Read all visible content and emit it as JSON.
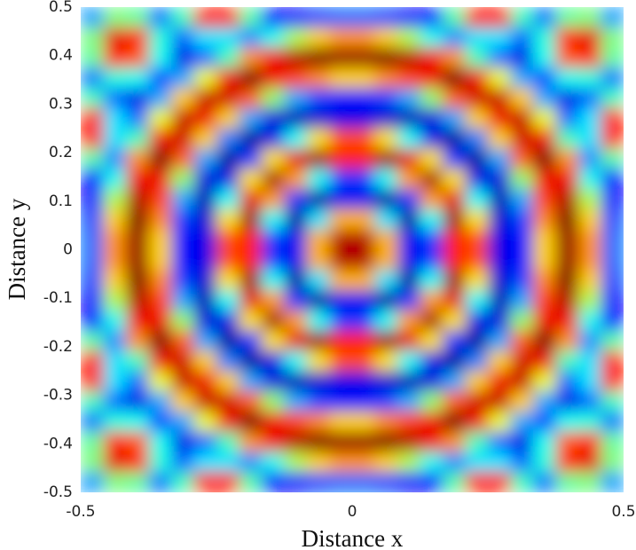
{
  "chart_data": {
    "type": "heatmap",
    "xlabel": "Distance x",
    "ylabel": "Distance y",
    "xlim": [
      -0.5,
      0.5
    ],
    "ylim": [
      -0.5,
      0.5
    ],
    "xticks": [
      -0.5,
      0,
      0.5
    ],
    "yticks": [
      -0.5,
      -0.4,
      -0.3,
      -0.2,
      -0.1,
      0,
      0.1,
      0.2,
      0.3,
      0.4,
      0.5
    ],
    "zlim": [
      0,
      1
    ],
    "colormap": "jet",
    "z": [
      [
        0.28,
        0.5,
        0.47,
        0.24,
        0.44,
        0.85,
        0.85,
        0.46,
        0.13,
        0.13,
        0.2,
        0.23,
        0.23,
        0.2,
        0.13,
        0.13,
        0.46,
        0.85,
        0.85,
        0.44,
        0.24,
        0.47,
        0.5,
        0.28
      ],
      [
        0.5,
        0.9,
        0.84,
        0.41,
        0.23,
        0.35,
        0.35,
        0.26,
        0.39,
        0.55,
        0.67,
        0.73,
        0.73,
        0.67,
        0.55,
        0.39,
        0.26,
        0.35,
        0.35,
        0.23,
        0.41,
        0.84,
        0.9,
        0.5
      ],
      [
        0.47,
        0.84,
        0.79,
        0.39,
        0.1,
        0.23,
        0.44,
        0.73,
        0.89,
        0.95,
        1,
        0.98,
        0.98,
        1,
        0.95,
        0.89,
        0.73,
        0.44,
        0.23,
        0.1,
        0.39,
        0.79,
        0.84,
        0.47
      ],
      [
        0.24,
        0.41,
        0.39,
        0.19,
        0.29,
        0.61,
        0.89,
        1,
        0.89,
        0.81,
        0.74,
        0.67,
        0.67,
        0.74,
        0.81,
        0.89,
        1,
        0.89,
        0.61,
        0.29,
        0.19,
        0.39,
        0.41,
        0.24
      ],
      [
        0.44,
        0.23,
        0.1,
        0.29,
        0.67,
        0.93,
        0.92,
        0.78,
        0.52,
        0.29,
        0.19,
        0.14,
        0.14,
        0.19,
        0.29,
        0.52,
        0.78,
        0.92,
        0.93,
        0.67,
        0.29,
        0.1,
        0.23,
        0.44
      ],
      [
        0.85,
        0.35,
        0.23,
        0.61,
        0.93,
        0.89,
        0.67,
        0.29,
        0.09,
        0.05,
        0.08,
        0.1,
        0.1,
        0.08,
        0.05,
        0.09,
        0.29,
        0.67,
        0.89,
        0.93,
        0.61,
        0.23,
        0.35,
        0.85
      ],
      [
        0.85,
        0.35,
        0.44,
        0.89,
        0.92,
        0.67,
        0.25,
        0.03,
        0.1,
        0.38,
        0.65,
        0.8,
        0.8,
        0.65,
        0.38,
        0.1,
        0.03,
        0.25,
        0.67,
        0.92,
        0.89,
        0.44,
        0.35,
        0.85
      ],
      [
        0.46,
        0.26,
        0.73,
        1,
        0.78,
        0.29,
        0.03,
        0.17,
        0.65,
        0.9,
        0.97,
        0.85,
        0.85,
        0.97,
        0.9,
        0.65,
        0.17,
        0.03,
        0.29,
        0.78,
        1,
        0.73,
        0.26,
        0.46
      ],
      [
        0.13,
        0.39,
        0.89,
        0.89,
        0.52,
        0.09,
        0.1,
        0.65,
        0.96,
        0.72,
        0.38,
        0.18,
        0.18,
        0.38,
        0.72,
        0.96,
        0.65,
        0.1,
        0.09,
        0.52,
        0.89,
        0.89,
        0.39,
        0.13
      ],
      [
        0.13,
        0.55,
        0.95,
        0.81,
        0.29,
        0.05,
        0.38,
        0.9,
        0.72,
        0.18,
        0.03,
        0.11,
        0.11,
        0.03,
        0.18,
        0.72,
        0.9,
        0.38,
        0.05,
        0.29,
        0.81,
        0.95,
        0.55,
        0.13
      ],
      [
        0.2,
        0.67,
        1,
        0.74,
        0.19,
        0.08,
        0.65,
        0.97,
        0.38,
        0.03,
        0.35,
        0.7,
        0.7,
        0.35,
        0.03,
        0.38,
        0.97,
        0.65,
        0.08,
        0.19,
        0.74,
        1,
        0.67,
        0.2
      ],
      [
        0.23,
        0.73,
        0.98,
        0.67,
        0.14,
        0.1,
        0.8,
        0.85,
        0.18,
        0.11,
        0.7,
        0.95,
        0.95,
        0.7,
        0.11,
        0.18,
        0.85,
        0.8,
        0.1,
        0.14,
        0.67,
        0.98,
        0.73,
        0.23
      ],
      [
        0.23,
        0.73,
        0.98,
        0.67,
        0.14,
        0.1,
        0.8,
        0.85,
        0.18,
        0.11,
        0.7,
        0.95,
        0.95,
        0.7,
        0.11,
        0.18,
        0.85,
        0.8,
        0.1,
        0.14,
        0.67,
        0.98,
        0.73,
        0.23
      ],
      [
        0.2,
        0.67,
        1,
        0.74,
        0.19,
        0.08,
        0.65,
        0.97,
        0.38,
        0.03,
        0.35,
        0.7,
        0.7,
        0.35,
        0.03,
        0.38,
        0.97,
        0.65,
        0.08,
        0.19,
        0.74,
        1,
        0.67,
        0.2
      ],
      [
        0.13,
        0.55,
        0.95,
        0.81,
        0.29,
        0.05,
        0.38,
        0.9,
        0.72,
        0.18,
        0.03,
        0.11,
        0.11,
        0.03,
        0.18,
        0.72,
        0.9,
        0.38,
        0.05,
        0.29,
        0.81,
        0.95,
        0.55,
        0.13
      ],
      [
        0.13,
        0.39,
        0.89,
        0.89,
        0.52,
        0.09,
        0.1,
        0.65,
        0.96,
        0.72,
        0.38,
        0.18,
        0.18,
        0.38,
        0.72,
        0.96,
        0.65,
        0.1,
        0.09,
        0.52,
        0.89,
        0.89,
        0.39,
        0.13
      ],
      [
        0.46,
        0.26,
        0.73,
        1,
        0.78,
        0.29,
        0.03,
        0.17,
        0.65,
        0.9,
        0.97,
        0.85,
        0.85,
        0.97,
        0.9,
        0.65,
        0.17,
        0.03,
        0.29,
        0.78,
        1,
        0.73,
        0.26,
        0.46
      ],
      [
        0.85,
        0.35,
        0.44,
        0.89,
        0.92,
        0.67,
        0.25,
        0.03,
        0.1,
        0.38,
        0.65,
        0.8,
        0.8,
        0.65,
        0.38,
        0.1,
        0.03,
        0.25,
        0.67,
        0.92,
        0.89,
        0.44,
        0.35,
        0.85
      ],
      [
        0.85,
        0.35,
        0.23,
        0.61,
        0.93,
        0.89,
        0.67,
        0.29,
        0.09,
        0.05,
        0.08,
        0.1,
        0.1,
        0.08,
        0.05,
        0.09,
        0.29,
        0.67,
        0.89,
        0.93,
        0.61,
        0.23,
        0.35,
        0.85
      ],
      [
        0.44,
        0.23,
        0.1,
        0.29,
        0.67,
        0.93,
        0.92,
        0.78,
        0.52,
        0.29,
        0.19,
        0.14,
        0.14,
        0.19,
        0.29,
        0.52,
        0.78,
        0.92,
        0.93,
        0.67,
        0.29,
        0.1,
        0.23,
        0.44
      ],
      [
        0.24,
        0.41,
        0.39,
        0.19,
        0.29,
        0.61,
        0.89,
        1,
        0.89,
        0.81,
        0.74,
        0.67,
        0.67,
        0.74,
        0.81,
        0.89,
        1,
        0.89,
        0.61,
        0.29,
        0.19,
        0.39,
        0.41,
        0.24
      ],
      [
        0.47,
        0.84,
        0.79,
        0.39,
        0.1,
        0.23,
        0.44,
        0.73,
        0.89,
        0.95,
        1,
        0.98,
        0.98,
        1,
        0.95,
        0.89,
        0.73,
        0.44,
        0.23,
        0.1,
        0.39,
        0.79,
        0.84,
        0.47
      ],
      [
        0.5,
        0.9,
        0.84,
        0.41,
        0.23,
        0.35,
        0.35,
        0.26,
        0.39,
        0.55,
        0.67,
        0.73,
        0.73,
        0.67,
        0.55,
        0.39,
        0.26,
        0.35,
        0.35,
        0.23,
        0.41,
        0.84,
        0.9,
        0.5
      ],
      [
        0.28,
        0.5,
        0.47,
        0.24,
        0.44,
        0.85,
        0.85,
        0.46,
        0.13,
        0.13,
        0.2,
        0.23,
        0.23,
        0.2,
        0.13,
        0.13,
        0.46,
        0.85,
        0.85,
        0.44,
        0.24,
        0.47,
        0.5,
        0.28
      ]
    ]
  }
}
